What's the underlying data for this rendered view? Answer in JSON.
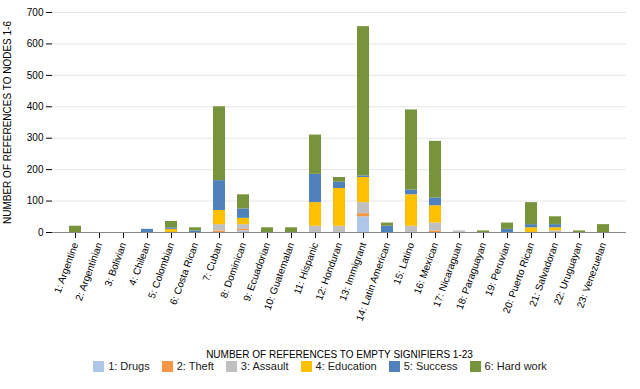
{
  "chart_data": {
    "type": "bar",
    "stacked": true,
    "xlabel": "NUMBER OF REFERENCES TO EMPTY SIGNIFIERS 1-23",
    "ylabel": "NUMBER OF REFERENCES TO NODES 1-6",
    "categories": [
      "1: Argentine",
      "2: Argentinian",
      "3: Bolivian",
      "4: Chilean",
      "5: Colombian",
      "6: Costa Rican",
      "7: Cuban",
      "8: Dominican",
      "9: Ecuadorian",
      "10: Guatemalan",
      "11: Hispanic",
      "12: Honduran",
      "13: Immigrant",
      "14: Latin American",
      "15: Latino",
      "16: Mexican",
      "17: Nicaraguan",
      "18: Paraguayan",
      "19: Peruvian",
      "20: Puerto Rican",
      "21: Salvadoran",
      "22: Uruguayan",
      "23: Venezuelan"
    ],
    "series": [
      {
        "name": "1: Drugs",
        "color": "#aec6e8",
        "values": [
          0,
          0,
          0,
          0,
          0,
          0,
          0,
          5,
          0,
          0,
          0,
          0,
          50,
          0,
          0,
          0,
          0,
          0,
          0,
          0,
          0,
          0,
          0
        ]
      },
      {
        "name": "2: Theft",
        "color": "#f79646",
        "values": [
          0,
          0,
          0,
          0,
          0,
          0,
          5,
          5,
          0,
          0,
          0,
          0,
          10,
          0,
          0,
          5,
          0,
          0,
          0,
          0,
          0,
          0,
          0
        ]
      },
      {
        "name": "3: Assault",
        "color": "#c0c0c0",
        "values": [
          0,
          0,
          0,
          0,
          0,
          0,
          20,
          15,
          0,
          0,
          20,
          20,
          35,
          0,
          20,
          25,
          5,
          0,
          0,
          0,
          5,
          0,
          0
        ]
      },
      {
        "name": "4: Education",
        "color": "#ffc000",
        "values": [
          0,
          0,
          0,
          0,
          10,
          0,
          45,
          20,
          0,
          0,
          75,
          120,
          80,
          0,
          100,
          55,
          0,
          0,
          0,
          15,
          10,
          0,
          0
        ]
      },
      {
        "name": "5: Success",
        "color": "#4f81bd",
        "values": [
          0,
          0,
          0,
          10,
          5,
          5,
          95,
          30,
          0,
          0,
          90,
          20,
          5,
          20,
          15,
          25,
          0,
          0,
          10,
          10,
          10,
          0,
          0
        ]
      },
      {
        "name": "6: Hard work",
        "color": "#77933c",
        "values": [
          20,
          0,
          0,
          0,
          20,
          10,
          235,
          45,
          15,
          15,
          125,
          15,
          475,
          10,
          255,
          180,
          0,
          5,
          20,
          70,
          25,
          5,
          25
        ]
      }
    ],
    "ylim": [
      0,
      700
    ],
    "yticks": [
      0,
      100,
      200,
      300,
      400,
      500,
      600,
      700
    ],
    "grid": true,
    "legend": "bottom"
  }
}
